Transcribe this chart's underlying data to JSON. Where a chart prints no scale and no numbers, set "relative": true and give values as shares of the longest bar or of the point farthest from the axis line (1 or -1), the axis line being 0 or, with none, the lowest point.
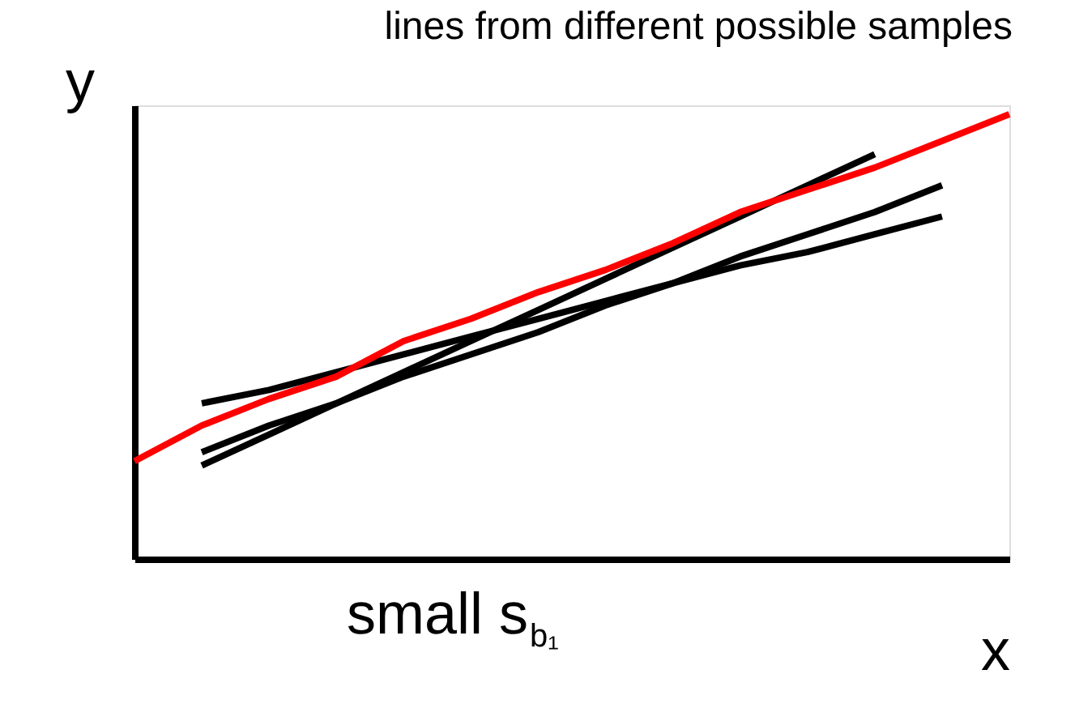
{
  "chart_data": {
    "type": "line",
    "relative": true,
    "title": "lines from different possible samples",
    "xlabel": "x",
    "ylabel": "y",
    "annotations": [
      "small s$_{b₁}$"
    ],
    "tick_labels": false,
    "grid": false,
    "legend": false,
    "marker": "none",
    "line_style": "solid",
    "categories": [
      null,
      null,
      null,
      null,
      null,
      null,
      null,
      null,
      null,
      null,
      null,
      null,
      null,
      null
    ],
    "series": [
      {
        "color": "#000000",
        "values": [
          null,
          0.35,
          0.38,
          0.42,
          0.46,
          0.5,
          0.54,
          0.58,
          0.62,
          0.66,
          0.69,
          0.73,
          0.77,
          null
        ]
      },
      {
        "color": "#000000",
        "values": [
          null,
          0.21,
          0.28,
          0.35,
          0.42,
          0.49,
          0.56,
          0.63,
          0.7,
          0.77,
          0.84,
          0.91,
          null,
          null
        ]
      },
      {
        "color": "#000000",
        "values": [
          null,
          0.24,
          0.3,
          0.35,
          0.41,
          0.46,
          0.51,
          0.57,
          0.62,
          0.68,
          0.73,
          0.78,
          0.84,
          null
        ]
      },
      {
        "color": "#ff0000",
        "values": [
          0.22,
          0.3,
          0.36,
          0.41,
          0.49,
          0.54,
          0.6,
          0.65,
          0.71,
          0.78,
          0.83,
          0.88,
          0.94,
          1.0
        ]
      }
    ]
  }
}
